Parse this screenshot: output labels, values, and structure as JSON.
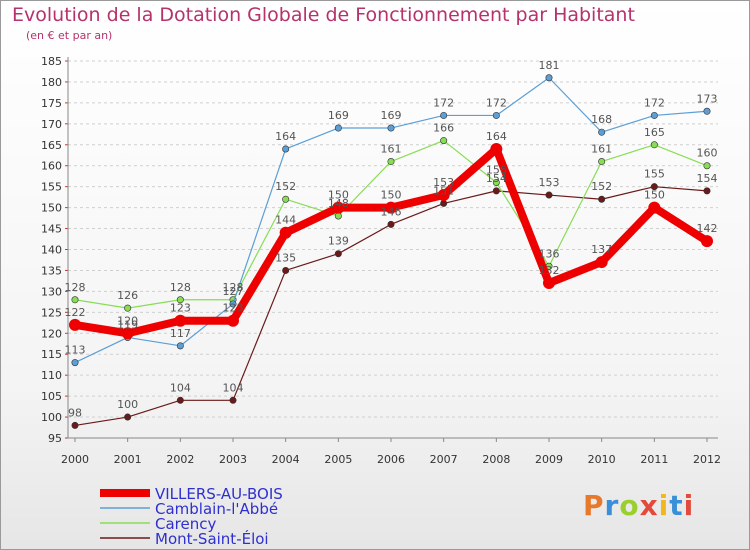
{
  "header": {
    "title": "Evolution de la Dotation Globale de Fonctionnement par Habitant",
    "subtitle": "(en € et par an)"
  },
  "chart_data": {
    "type": "line",
    "title": "Evolution de la Dotation Globale de Fonctionnement par Habitant",
    "subtitle": "(en € et par an)",
    "xlabel": "",
    "ylabel": "",
    "x": [
      "2000",
      "2001",
      "2002",
      "2003",
      "2004",
      "2005",
      "2006",
      "2007",
      "2008",
      "2009",
      "2010",
      "2011",
      "2012"
    ],
    "ylim": [
      95,
      185
    ],
    "yticks": [
      95,
      100,
      105,
      110,
      115,
      120,
      125,
      130,
      135,
      140,
      145,
      150,
      155,
      160,
      165,
      170,
      175,
      180,
      185
    ],
    "grid": "horizontal dashed",
    "legend_position": "bottom-left",
    "series": [
      {
        "name": "Mont-Saint-Éloi",
        "color": "#6b1a1a",
        "width": 1.2,
        "values": [
          98,
          100,
          104,
          104,
          135,
          139,
          146,
          151,
          154,
          153,
          152,
          155,
          154
        ]
      },
      {
        "name": "Carency",
        "color": "#88dd55",
        "width": 1.2,
        "values": [
          128,
          126,
          128,
          128,
          152,
          148,
          161,
          166,
          156,
          136,
          161,
          165,
          160
        ]
      },
      {
        "name": "Camblain-l'Abbé",
        "color": "#5b9fd6",
        "width": 1.2,
        "values": [
          113,
          119,
          117,
          127,
          164,
          169,
          169,
          172,
          172,
          181,
          168,
          172,
          173
        ]
      },
      {
        "name": "VILLERS-AU-BOIS",
        "color": "#ee0000",
        "width": 8,
        "values": [
          122,
          120,
          123,
          123,
          144,
          150,
          150,
          153,
          164,
          132,
          137,
          150,
          142
        ]
      }
    ]
  },
  "legend": {
    "items": [
      {
        "label": "VILLERS-AU-BOIS",
        "color": "#ee0000"
      },
      {
        "label": "Camblain-l'Abbé",
        "color": "#5b9fd6"
      },
      {
        "label": "Carency",
        "color": "#88dd55"
      },
      {
        "label": "Mont-Saint-Éloi",
        "color": "#6b1a1a"
      }
    ]
  },
  "logo": {
    "letters": [
      "P",
      "r",
      "o",
      "x",
      "i",
      "t",
      "i"
    ],
    "colors": [
      "#e8792a",
      "#3a8fd8",
      "#9bcf2e",
      "#e24a3b",
      "#f0b81e",
      "#3a8fd8",
      "#e24a3b"
    ]
  }
}
